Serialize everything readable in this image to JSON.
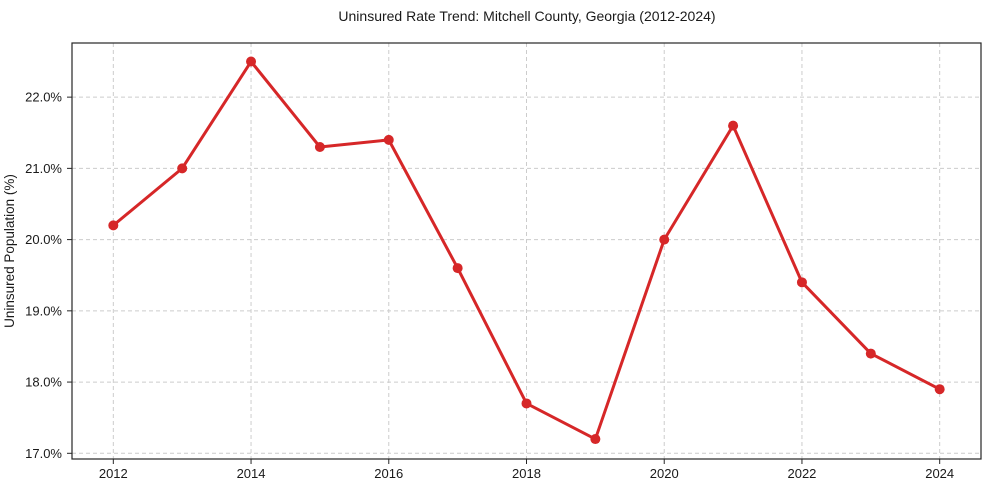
{
  "page": {
    "background": "#ffffff"
  },
  "chart_data": {
    "type": "line",
    "title": "Uninsured Rate Trend: Mitchell County, Georgia (2012-2024)",
    "xlabel": "",
    "ylabel": "Uninsured Population (%)",
    "x": [
      2012,
      2013,
      2014,
      2015,
      2016,
      2017,
      2018,
      2019,
      2020,
      2021,
      2022,
      2023,
      2024
    ],
    "values": [
      20.2,
      21.0,
      22.5,
      21.3,
      21.4,
      19.6,
      17.7,
      17.2,
      20.0,
      21.6,
      19.4,
      18.4,
      17.9
    ],
    "xticks": {
      "values": [
        2012,
        2014,
        2016,
        2018,
        2020,
        2022,
        2024
      ],
      "labels": [
        "2012",
        "2014",
        "2016",
        "2018",
        "2020",
        "2022",
        "2024"
      ]
    },
    "yticks": {
      "values": [
        17,
        18,
        19,
        20,
        21,
        22
      ],
      "labels": [
        "17.0%",
        "18.0%",
        "19.0%",
        "20.0%",
        "21.0%",
        "22.0%"
      ]
    },
    "xlim": [
      2011.4,
      2024.6
    ],
    "ylim": [
      16.92,
      22.76
    ],
    "grid": {
      "show": true,
      "color": "#cccccc",
      "style": "dashed"
    },
    "line_color": "#d62728",
    "marker": "circle",
    "line_width": 3,
    "marker_radius": 5,
    "axis_color": "#262626",
    "text_color": "#1a1a1a",
    "legend": null
  }
}
